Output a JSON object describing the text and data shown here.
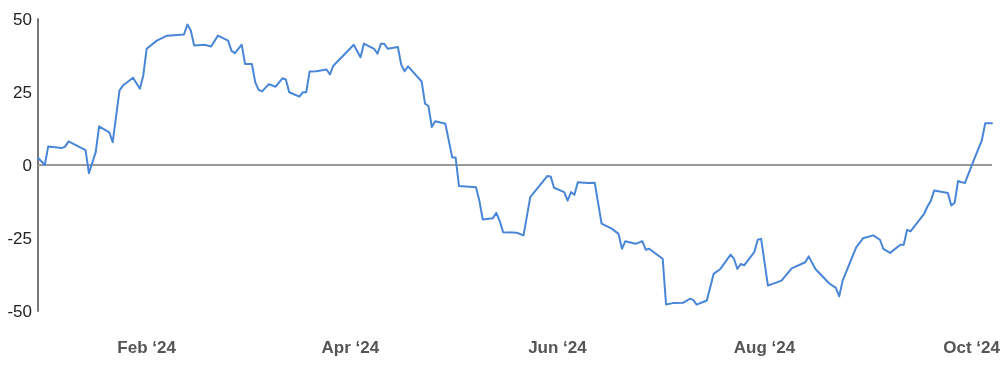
{
  "chart_data": {
    "type": "line",
    "xlim": [
      "2023-12-31",
      "2024-10-07"
    ],
    "ylim": [
      -50,
      50
    ],
    "yticks": [
      -50,
      -25,
      0,
      25,
      50
    ],
    "xticks": [
      {
        "value": "2024-02-01",
        "label": "Feb ‘24"
      },
      {
        "value": "2024-04-01",
        "label": "Apr ‘24"
      },
      {
        "value": "2024-06-01",
        "label": "Jun ‘24"
      },
      {
        "value": "2024-08-01",
        "label": "Aug ‘24"
      },
      {
        "value": "2024-10-01",
        "label": "Oct ‘24"
      }
    ],
    "grid": false,
    "marker": "none",
    "line_style": "solid",
    "ref_lines": [
      {
        "axis": "y",
        "value": 0,
        "color": "#999999"
      }
    ],
    "x": [
      "2023-12-31",
      "2024-01-02",
      "2024-01-03",
      "2024-01-07",
      "2024-01-08",
      "2024-01-09",
      "2024-01-12",
      "2024-01-14",
      "2024-01-15",
      "2024-01-17",
      "2024-01-18",
      "2024-01-21",
      "2024-01-22",
      "2024-01-24",
      "2024-01-25",
      "2024-01-28",
      "2024-01-30",
      "2024-01-31",
      "2024-02-01",
      "2024-02-04",
      "2024-02-07",
      "2024-02-12",
      "2024-02-13",
      "2024-02-14",
      "2024-02-15",
      "2024-02-18",
      "2024-02-20",
      "2024-02-22",
      "2024-02-25",
      "2024-02-26",
      "2024-02-27",
      "2024-02-29",
      "2024-03-01",
      "2024-03-03",
      "2024-03-04",
      "2024-03-05",
      "2024-03-06",
      "2024-03-08",
      "2024-03-10",
      "2024-03-12",
      "2024-03-13",
      "2024-03-14",
      "2024-03-17",
      "2024-03-18",
      "2024-03-19",
      "2024-03-20",
      "2024-03-22",
      "2024-03-25",
      "2024-03-26",
      "2024-03-27",
      "2024-04-02",
      "2024-04-04",
      "2024-04-05",
      "2024-04-08",
      "2024-04-09",
      "2024-04-10",
      "2024-04-11",
      "2024-04-12",
      "2024-04-15",
      "2024-04-16",
      "2024-04-17",
      "2024-04-18",
      "2024-04-22",
      "2024-04-23",
      "2024-04-24",
      "2024-04-25",
      "2024-04-26",
      "2024-04-29",
      "2024-05-01",
      "2024-05-02",
      "2024-05-03",
      "2024-05-08",
      "2024-05-09",
      "2024-05-10",
      "2024-05-13",
      "2024-05-14",
      "2024-05-15",
      "2024-05-16",
      "2024-05-20",
      "2024-05-22",
      "2024-05-24",
      "2024-05-29",
      "2024-05-30",
      "2024-05-31",
      "2024-06-03",
      "2024-06-04",
      "2024-06-05",
      "2024-06-06",
      "2024-06-07",
      "2024-06-10",
      "2024-06-12",
      "2024-06-14",
      "2024-06-17",
      "2024-06-19",
      "2024-06-20",
      "2024-06-21",
      "2024-06-24",
      "2024-06-26",
      "2024-06-27",
      "2024-06-28",
      "2024-07-02",
      "2024-07-03",
      "2024-07-05",
      "2024-07-08",
      "2024-07-10",
      "2024-07-11",
      "2024-07-12",
      "2024-07-15",
      "2024-07-17",
      "2024-07-19",
      "2024-07-22",
      "2024-07-23",
      "2024-07-24",
      "2024-07-25",
      "2024-07-26",
      "2024-07-29",
      "2024-07-30",
      "2024-07-31",
      "2024-08-02",
      "2024-08-06",
      "2024-08-09",
      "2024-08-13",
      "2024-08-14",
      "2024-08-16",
      "2024-08-20",
      "2024-08-22",
      "2024-08-23",
      "2024-08-24",
      "2024-08-28",
      "2024-08-30",
      "2024-09-02",
      "2024-09-04",
      "2024-09-05",
      "2024-09-07",
      "2024-09-10",
      "2024-09-11",
      "2024-09-12",
      "2024-09-13",
      "2024-09-17",
      "2024-09-18",
      "2024-09-19",
      "2024-09-20",
      "2024-09-24",
      "2024-09-25",
      "2024-09-26",
      "2024-09-27",
      "2024-09-29",
      "2024-10-02",
      "2024-10-04",
      "2024-10-05",
      "2024-10-07"
    ],
    "series": [
      {
        "color": "#4a86d8",
        "values": [
          2.5,
          0,
          6.3,
          5.8,
          6.3,
          8.1,
          6.3,
          5.1,
          -2.8,
          4.4,
          13.2,
          11.2,
          7.8,
          25.5,
          27.2,
          29.9,
          26.1,
          30.6,
          39.8,
          42.6,
          44.3,
          44.7,
          48.1,
          46.1,
          40.9,
          41.2,
          40.6,
          44.3,
          42.6,
          39.1,
          38.3,
          41.2,
          34.6,
          34.6,
          28.3,
          25.7,
          25.2,
          27.7,
          26.8,
          29.7,
          29.3,
          24.9,
          23.4,
          24.9,
          24.9,
          32,
          32.1,
          32.7,
          31,
          34,
          41.2,
          36.9,
          41.6,
          39.8,
          38.1,
          41.5,
          41.5,
          39.8,
          40.4,
          34.3,
          32.1,
          33.8,
          28.6,
          21,
          20.2,
          13,
          15,
          14.1,
          2.6,
          2.6,
          -7.2,
          -7.6,
          -12.2,
          -18.7,
          -18.2,
          -16.4,
          -19.2,
          -23,
          -23.2,
          -24.1,
          -11,
          -3.8,
          -3.9,
          -7.8,
          -9.3,
          -12.2,
          -9.3,
          -10.2,
          -5.9,
          -6.2,
          -6.1,
          -20.1,
          -21.8,
          -23.6,
          -28.7,
          -26.1,
          -27,
          -26.1,
          -29,
          -28.7,
          -32.1,
          -47.8,
          -47.3,
          -47.2,
          -45.8,
          -46.2,
          -47.8,
          -46.4,
          -37.3,
          -35.6,
          -30.7,
          -32.1,
          -35.6,
          -33.9,
          -34.4,
          -29.8,
          -25.6,
          -25.3,
          -41.3,
          -39.6,
          -35.4,
          -33.3,
          -31.3,
          -35.6,
          -40.5,
          -42.1,
          -45,
          -39.6,
          -28.2,
          -25.1,
          -24.1,
          -25.6,
          -28.7,
          -30.1,
          -27.3,
          -27.3,
          -22.2,
          -22.7,
          -16.7,
          -14.2,
          -12.2,
          -8.7,
          -9.6,
          -13.9,
          -12.9,
          -5.5,
          -6.2,
          2.7,
          8.4,
          14.3,
          14.3
        ]
      }
    ]
  }
}
